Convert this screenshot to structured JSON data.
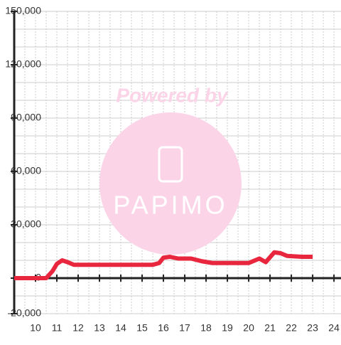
{
  "chart_data": {
    "type": "line",
    "watermark": {
      "top": "Powered by",
      "brand": "PAPIMO"
    },
    "x": [
      9,
      10.5,
      10.8,
      11,
      11.25,
      11.5,
      11.8,
      12.5,
      13.5,
      14.5,
      15.5,
      15.8,
      16,
      16.3,
      16.7,
      17.3,
      17.8,
      18.3,
      19,
      20,
      20.5,
      20.8,
      21.2,
      21.5,
      21.8,
      22.5,
      23
    ],
    "values": [
      0,
      0,
      4000,
      8000,
      10000,
      9000,
      7500,
      7500,
      7500,
      7500,
      7500,
      8500,
      11500,
      12000,
      11000,
      11000,
      9500,
      8500,
      8500,
      8500,
      11000,
      9000,
      14500,
      14000,
      12500,
      12000,
      12000
    ],
    "color": "#e8263e",
    "xlim": [
      9,
      24.33
    ],
    "xticks": [
      10,
      11,
      12,
      13,
      14,
      15,
      16,
      17,
      18,
      19,
      20,
      21,
      22,
      23,
      24
    ],
    "xminorticks": [
      9.5,
      10.5,
      11.5,
      12.5,
      13.5,
      14.5,
      15.5,
      16.5,
      17.5,
      18.5,
      19.5,
      20.5,
      21.5,
      22.5,
      23.5
    ],
    "ylim": [
      -20000,
      150000
    ],
    "yticks": [
      {
        "value": -20000,
        "label": "-20,000"
      },
      0,
      {
        "value": 30000,
        "label": "30,000"
      },
      {
        "value": 60000,
        "label": "60,000"
      },
      {
        "value": 90000,
        "label": "90,000"
      },
      {
        "value": 120000,
        "label": "120,000"
      },
      {
        "value": 150000,
        "label": "150,000"
      }
    ],
    "yminorticks": [
      -10000,
      10000,
      20000,
      40000,
      50000,
      70000,
      80000,
      100000,
      110000,
      130000,
      140000
    ],
    "grid": true
  }
}
